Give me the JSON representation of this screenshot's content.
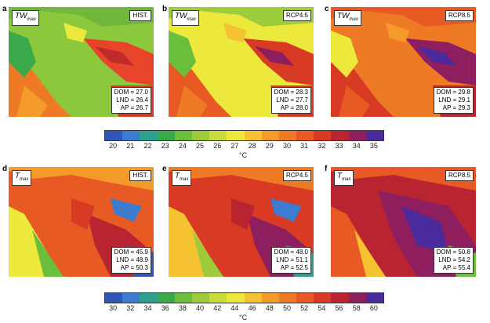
{
  "top_row": {
    "variable": {
      "base": "TW",
      "sub": "max"
    },
    "panels": [
      {
        "letter": "a",
        "scenario": "HIST.",
        "stats": [
          "DOM = 27.0",
          "LND = 26.4",
          "AP = 26.7"
        ]
      },
      {
        "letter": "b",
        "scenario": "RCP4.5",
        "stats": [
          "DOM = 28.3",
          "LND = 27.7",
          "AP = 28.0"
        ]
      },
      {
        "letter": "c",
        "scenario": "RCP8.5",
        "stats": [
          "DOM = 29.8",
          "LND = 29.1",
          "AP = 29.3"
        ]
      }
    ],
    "colorbar": {
      "ticks": [
        "20",
        "21",
        "22",
        "23",
        "24",
        "25",
        "26",
        "27",
        "28",
        "29",
        "30",
        "31",
        "32",
        "33",
        "34",
        "35"
      ],
      "colors": [
        "#2f56b8",
        "#3c7bd0",
        "#2f9f8f",
        "#3aa94a",
        "#6bbd3c",
        "#9ccc3a",
        "#c8dc3a",
        "#ece83c",
        "#f5c232",
        "#f39a2a",
        "#ee7a26",
        "#e85a24",
        "#d83a24",
        "#b82430",
        "#8e1e5e",
        "#4a2a9c"
      ],
      "unit": "°C"
    }
  },
  "bottom_row": {
    "variable": {
      "base": "T",
      "sub": "max"
    },
    "panels": [
      {
        "letter": "d",
        "scenario": "HIST.",
        "stats": [
          "DOM = 45.9",
          "LND = 48.9",
          "AP = 50.3"
        ]
      },
      {
        "letter": "e",
        "scenario": "RCP4.5",
        "stats": [
          "DOM = 48.0",
          "LND = 51.1",
          "AP = 52.5"
        ]
      },
      {
        "letter": "f",
        "scenario": "RCP8.5",
        "stats": [
          "DOM = 50.8",
          "LND = 54.2",
          "AP = 55.4"
        ]
      }
    ],
    "colorbar": {
      "ticks": [
        "30",
        "32",
        "34",
        "36",
        "38",
        "40",
        "42",
        "44",
        "46",
        "48",
        "50",
        "52",
        "54",
        "56",
        "58",
        "60"
      ],
      "colors": [
        "#2f56b8",
        "#3c7bd0",
        "#2f9f8f",
        "#3aa94a",
        "#6bbd3c",
        "#9ccc3a",
        "#c8dc3a",
        "#ece83c",
        "#f5c232",
        "#f39a2a",
        "#ee7a26",
        "#e85a24",
        "#d83a24",
        "#b82430",
        "#8e1e5e",
        "#4a2a9c"
      ],
      "unit": "°C"
    }
  }
}
